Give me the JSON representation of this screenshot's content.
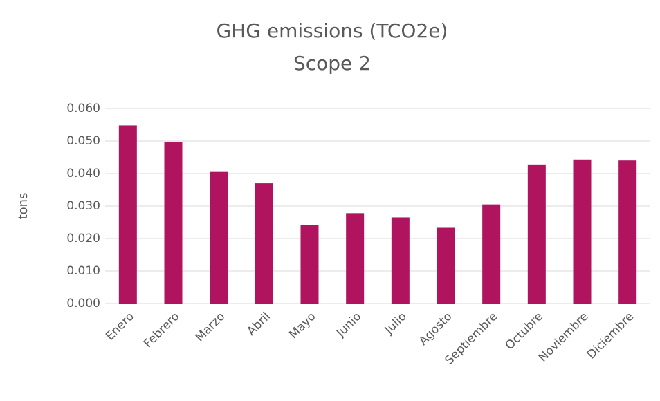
{
  "chart_data": {
    "type": "bar",
    "title": "GHG emissions (TCO2e)",
    "subtitle": "Scope 2",
    "y_label": "tons",
    "categories": [
      "Enero",
      "Febrero",
      "Marzo",
      "Abril",
      "Mayo",
      "Junio",
      "Julio",
      "Agosto",
      "Septiembre",
      "Octubre",
      "Noviembre",
      "Diciembre"
    ],
    "values": [
      0.0548,
      0.0497,
      0.0405,
      0.037,
      0.0242,
      0.0278,
      0.0265,
      0.0233,
      0.0305,
      0.0428,
      0.0443,
      0.044
    ],
    "color": "#b0145e",
    "ylim": [
      0,
      0.06
    ],
    "yticks": [
      {
        "value": 0,
        "label": "0.000"
      },
      {
        "value": 0.01,
        "label": "0.010"
      },
      {
        "value": 0.02,
        "label": "0.020"
      },
      {
        "value": 0.03,
        "label": "0.030"
      },
      {
        "value": 0.04,
        "label": "0.040"
      },
      {
        "value": 0.05,
        "label": "0.050"
      },
      {
        "value": 0.06,
        "label": "0.060"
      }
    ],
    "grid": true
  }
}
